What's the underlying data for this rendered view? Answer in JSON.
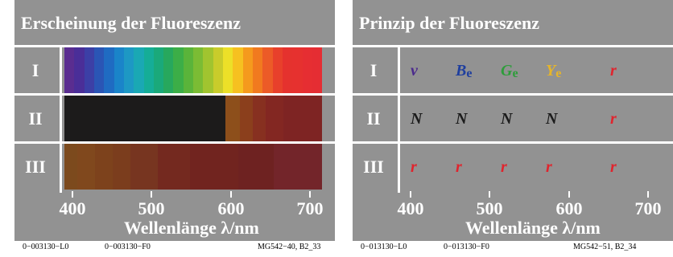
{
  "left_panel": {
    "title": "Erscheinung der Fluoreszenz",
    "row_labels": [
      "I",
      "II",
      "III"
    ],
    "axis_ticks": [
      "400",
      "500",
      "600",
      "700"
    ],
    "axis_label": "Wellenlänge λ/nm",
    "row1_colors": [
      "#5a2d90",
      "#4a2e98",
      "#3c3fa6",
      "#2a55b5",
      "#1f6bc2",
      "#1a84c9",
      "#1d98c4",
      "#1aa8b4",
      "#15ad97",
      "#1aa97a",
      "#27a85d",
      "#3cae47",
      "#5ab43a",
      "#7bbc34",
      "#a1c42f",
      "#c9cc2b",
      "#ece028",
      "#f6c120",
      "#f59a1d",
      "#f17a1f",
      "#ec5b27",
      "#e8402b",
      "#e5322e",
      "#e6312f",
      "#e62e32",
      "#e52d33"
    ],
    "row2_colors": [
      "#1c1b1b",
      "#8d4f1b",
      "#8b3f1c",
      "#873020",
      "#832722",
      "#7e2423"
    ],
    "row3_colors": [
      "#7c4a1d",
      "#80481d",
      "#7d421c",
      "#7b3d1d",
      "#773520",
      "#74291f",
      "#71241f",
      "#6e2221",
      "#73252a"
    ]
  },
  "right_panel": {
    "title": "Prinzip der Fluoreszenz",
    "row_labels": [
      "I",
      "II",
      "III"
    ],
    "axis_ticks": [
      "400",
      "500",
      "600",
      "700"
    ],
    "axis_label": "Wellenlänge λ/nm",
    "row1": [
      {
        "text": "v",
        "sub": "",
        "color": "#4b2a8c"
      },
      {
        "text": "B",
        "sub": "e",
        "color": "#1f3f9e"
      },
      {
        "text": "G",
        "sub": "e",
        "color": "#2e9d3b"
      },
      {
        "text": "Y",
        "sub": "e",
        "color": "#e6b52a"
      },
      {
        "text": "r",
        "sub": "",
        "color": "#e0242d"
      }
    ],
    "row2": [
      {
        "text": "N",
        "color": "#1b1b1b"
      },
      {
        "text": "N",
        "color": "#1b1b1b"
      },
      {
        "text": "N",
        "color": "#1b1b1b"
      },
      {
        "text": "N",
        "color": "#1b1b1b"
      },
      {
        "text": "r",
        "color": "#e0242d"
      }
    ],
    "row3": [
      {
        "text": "r",
        "color": "#e0242d"
      },
      {
        "text": "r",
        "color": "#e0242d"
      },
      {
        "text": "r",
        "color": "#e0242d"
      },
      {
        "text": "r",
        "color": "#e0242d"
      },
      {
        "text": "r",
        "color": "#e0242d"
      }
    ]
  },
  "footer_left": {
    "code1": "0−003130−L0",
    "code2": "0−003130−F0",
    "ref": "MG542−40, B2_33"
  },
  "footer_right": {
    "code1": "0−013130−L0",
    "code2": "0−013130−F0",
    "ref": "MG542−51, B2_34"
  }
}
